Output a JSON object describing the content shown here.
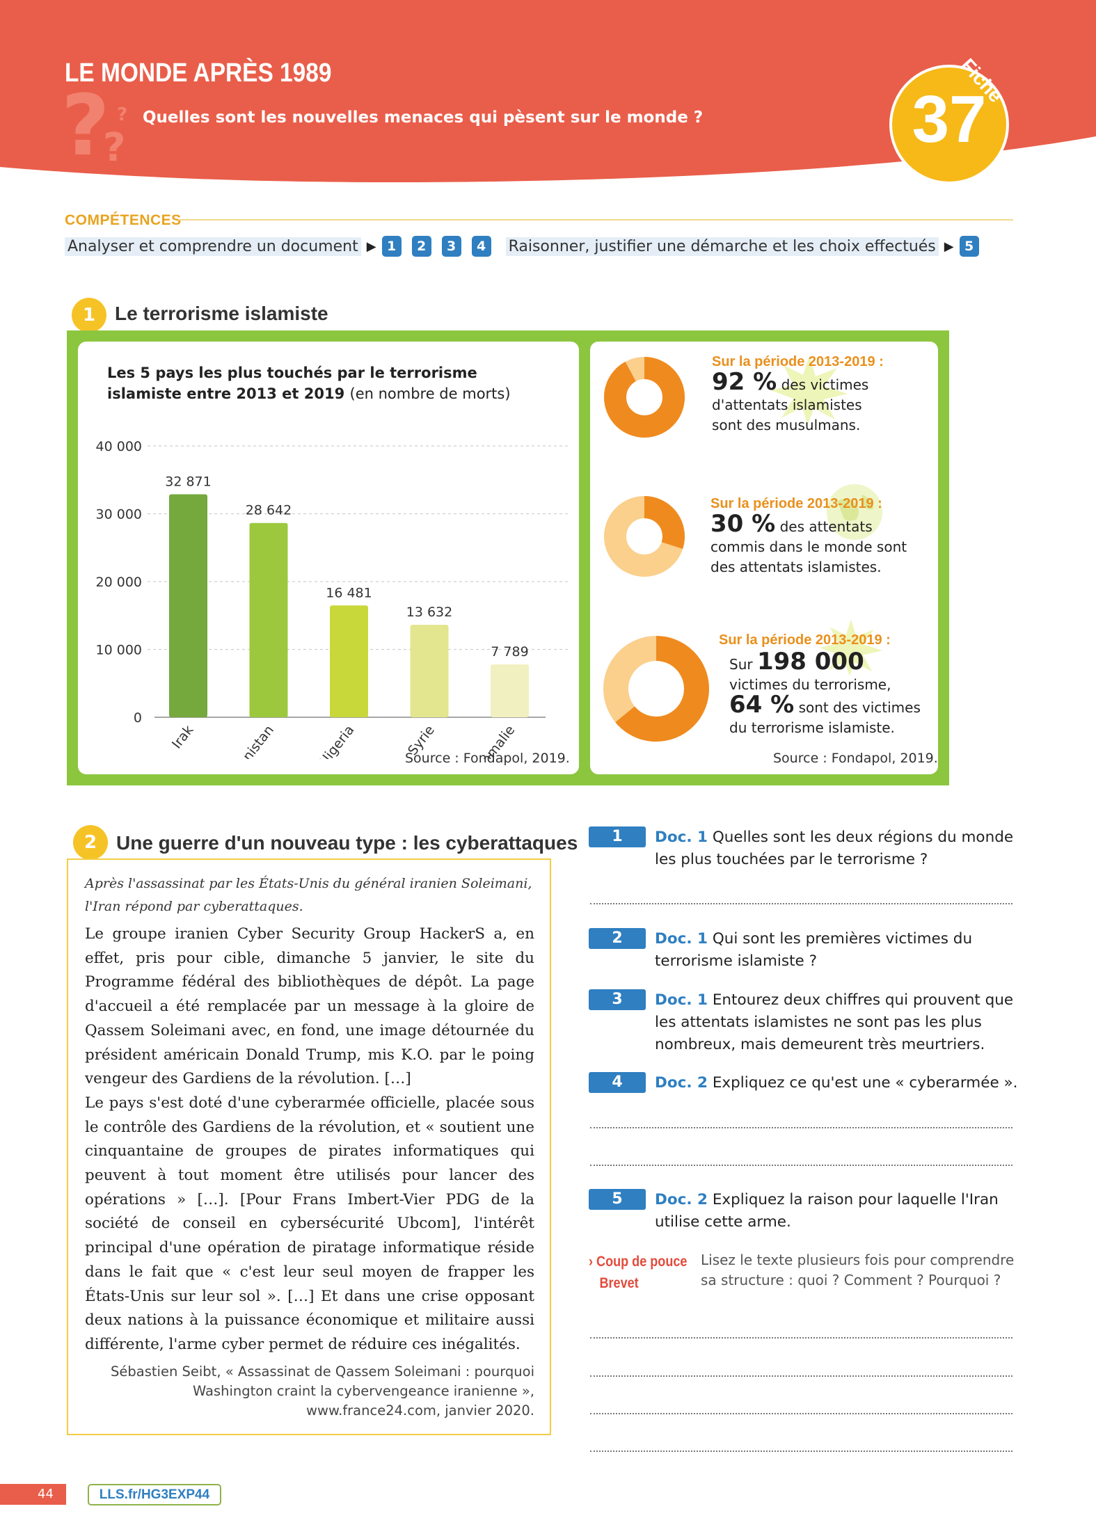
{
  "header": {
    "chapter_title": "LE MONDE APRÈS 1989",
    "question": "Quelles sont les nouvelles menaces qui pèsent sur le monde ?",
    "fiche_label": "Fiche",
    "fiche_number": "37",
    "colors": {
      "banner": "#e95e4a",
      "badge": "#f6b918"
    }
  },
  "competences": {
    "title": "COMPÉTENCES",
    "skill1": "Analyser et comprendre un document",
    "skill1_numbers": [
      "1",
      "2",
      "3",
      "4"
    ],
    "skill2": "Raisonner, justifier une démarche et les choix effectués",
    "skill2_numbers": [
      "5"
    ]
  },
  "doc1": {
    "number": "1",
    "title": "Le terrorisme islamiste",
    "chart_title_bold": "Les 5 pays les plus touchés par le terrorisme islamiste entre 2013 et 2019",
    "chart_title_unit": "(en nombre de morts)",
    "source_left": "Source : Fondapol, 2019.",
    "source_right": "Source : Fondapol, 2019.",
    "stats": [
      {
        "heading": "Sur la période 2013-2019 :",
        "big": "92 %",
        "text_after_big": " des victimes",
        "rest": "d'attentats islamistes sont des musulmans.",
        "donut_fraction": 0.92
      },
      {
        "heading": "Sur la période 2013-2019 :",
        "big": "30 %",
        "text_after_big": " des attentats",
        "rest": "commis dans le monde sont des attentats islamistes.",
        "donut_fraction": 0.3
      },
      {
        "heading": "Sur la période 2013-2019 :",
        "prefix": "Sur ",
        "big": "198 000",
        "line2": "victimes du terrorisme,",
        "big2": "64 %",
        "text_after_big2": " sont des victimes",
        "line4": "du terrorisme islamiste.",
        "donut_fraction": 0.64
      }
    ]
  },
  "chart_data": {
    "type": "bar",
    "title": "Les 5 pays les plus touchés par le terrorisme islamiste entre 2013 et 2019 (en nombre de morts)",
    "categories": [
      "Irak",
      "Afghanistan",
      "Nigeria",
      "Syrie",
      "Somalie"
    ],
    "values": [
      32871,
      28642,
      16481,
      13632,
      7789
    ],
    "value_labels": [
      "32 871",
      "28 642",
      "16 481",
      "13 632",
      "7 789"
    ],
    "bar_colors": [
      "#75a83d",
      "#9cc83e",
      "#c8d83a",
      "#e3e68e",
      "#f1f0c0"
    ],
    "yticks": [
      "0",
      "10 000",
      "20 000",
      "30 000",
      "40 000"
    ],
    "ytick_values": [
      0,
      10000,
      20000,
      30000,
      40000
    ],
    "ylim": [
      0,
      40000
    ],
    "grid": true,
    "xlabel": "",
    "ylabel": ""
  },
  "doc2": {
    "number": "2",
    "title": "Une guerre d'un nouveau type : les cyberattaques",
    "intro": "Après l'assassinat par les États-Unis du général iranien Soleimani, l'Iran répond par cyberattaques.",
    "body": "Le groupe iranien Cyber Security Group HackerS a, en effet, pris pour cible, dimanche 5 janvier, le site du Programme fédéral des bibliothèques de dépôt. La page d'accueil a été remplacée par un message à la gloire de Qassem Soleimani avec, en fond, une image détournée du président américain Donald Trump, mis K.O. par le poing vengeur des Gardiens de la révolution. […]",
    "body2": "Le pays s'est doté d'une cyberarmée officielle, placée sous le contrôle des Gardiens de la révolution, et « soutient une cinquantaine de groupes de pirates informatiques qui peuvent à tout moment être utilisés pour lancer des opérations » […]. [Pour Frans Imbert-Vier PDG de la société de conseil en cybersécurité Ubcom], l'intérêt principal d'une opération de piratage informatique réside dans le fait que « c'est leur seul moyen de frapper les États-Unis sur leur sol ». […] Et dans une crise opposant deux nations à la puissance économique et militaire aussi différente, l'arme cyber permet de réduire ces inégalités.",
    "citation": "Sébastien Seibt, « Assassinat de Qassem Soleimani : pourquoi Washington craint la cybervengeance iranienne », www.france24.com, janvier 2020."
  },
  "questions": [
    {
      "num": "1",
      "doc": "Doc. 1",
      "text": " Quelles sont les deux régions du monde les plus touchées par le terrorisme ?"
    },
    {
      "num": "2",
      "doc": "Doc. 1",
      "text": " Qui sont les premières victimes du terrorisme islamiste ?"
    },
    {
      "num": "3",
      "doc": "Doc. 1",
      "text": " Entourez deux chiffres qui prouvent que les attentats islamistes ne sont pas les plus nombreux, mais demeurent très meurtriers."
    },
    {
      "num": "4",
      "doc": "Doc. 2",
      "text": " Expliquez ce qu'est une « cyberarmée »."
    },
    {
      "num": "5",
      "doc": "Doc. 2",
      "text": " Expliquez la raison pour laquelle l'Iran utilise cette arme."
    }
  ],
  "coup_de_pouce": {
    "label_line1": "› Coup de pouce",
    "label_line2": "Brevet",
    "text": "Lisez le texte plusieurs fois pour comprendre sa structure : quoi ? Comment ? Pourquoi ?"
  },
  "footer": {
    "page_number": "44",
    "link": "LLS.fr/HG3EXP44"
  }
}
